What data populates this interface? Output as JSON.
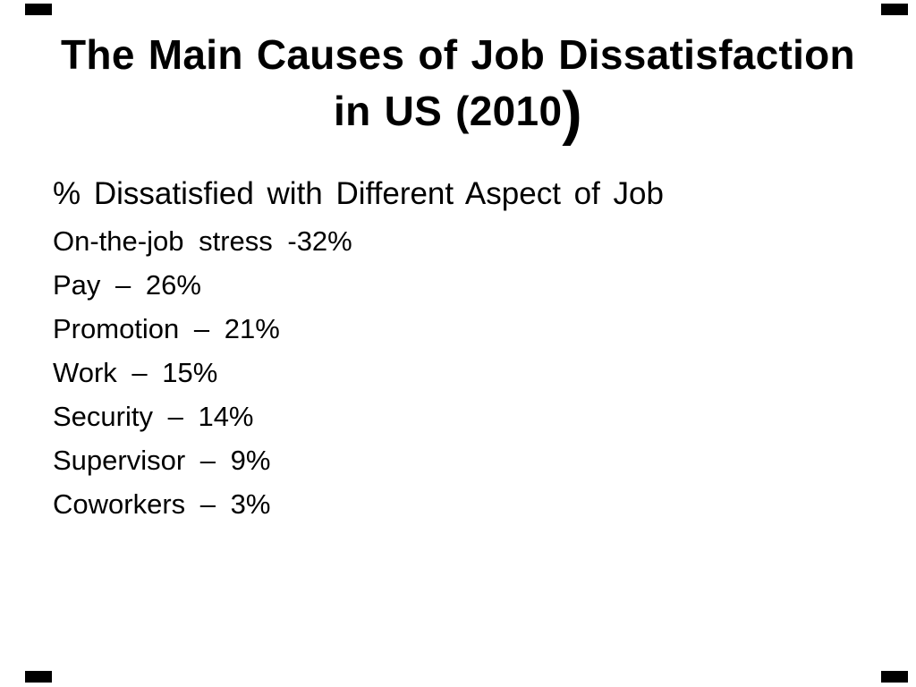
{
  "background_color": "#ffffff",
  "text_color": "#000000",
  "title": {
    "line1": "The Main Causes of Job Dissatisfaction",
    "line2_main": "in US (2010",
    "line2_paren": ")"
  },
  "body": {
    "subtitle": "% Dissatisfied with Different Aspect of Job",
    "items": [
      {
        "label": "On-the-job stress",
        "value_pct": 32,
        "text": "On-the-job stress -32%"
      },
      {
        "label": "Pay",
        "value_pct": 26,
        "text": "Pay – 26%"
      },
      {
        "label": "Promotion",
        "value_pct": 21,
        "text": "Promotion – 21%"
      },
      {
        "label": "Work",
        "value_pct": 15,
        "text": "Work – 15%"
      },
      {
        "label": "Security",
        "value_pct": 14,
        "text": "Security – 14%"
      },
      {
        "label": "Supervisor",
        "value_pct": 9,
        "text": "Supervisor – 9%"
      },
      {
        "label": "Coworkers",
        "value_pct": 3,
        "text": "Coworkers – 3%"
      }
    ]
  },
  "decorations": {
    "corner_marks": {
      "color": "#000000",
      "positions": [
        "top-left",
        "top-right",
        "bottom-left",
        "bottom-right"
      ]
    }
  }
}
